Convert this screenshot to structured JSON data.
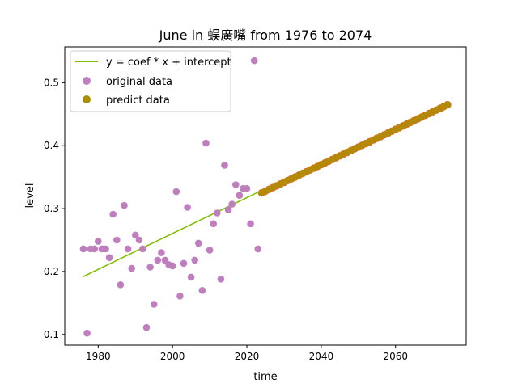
{
  "chart_data": {
    "type": "scatter",
    "title": "June in 蜈廣嘴 from 1976 to 2074",
    "xlabel": "time",
    "ylabel": "level",
    "xlim": [
      1971,
      2079
    ],
    "ylim": [
      0.083,
      0.557
    ],
    "xticks": [
      1980,
      2000,
      2020,
      2040,
      2060
    ],
    "yticks": [
      0.1,
      0.2,
      0.3,
      0.4,
      0.5
    ],
    "grid": false,
    "legend_position": "top-left",
    "legend": [
      {
        "label": "y = coef * x + intercept",
        "kind": "line",
        "color": "#7fbf00"
      },
      {
        "label": "original data",
        "kind": "marker",
        "color": "#bf7fbf"
      },
      {
        "label": "predict data",
        "kind": "marker",
        "color": "#ab8f00"
      }
    ],
    "series": [
      {
        "name": "y = coef * x + intercept",
        "kind": "line",
        "color": "#7fbf00",
        "x": [
          1976,
          2023
        ],
        "y": [
          0.192,
          0.326
        ]
      },
      {
        "name": "original data",
        "kind": "scatter",
        "color": "#bf7fbf",
        "x": [
          1976,
          1977,
          1978,
          1979,
          1980,
          1981,
          1982,
          1983,
          1984,
          1985,
          1986,
          1987,
          1988,
          1989,
          1990,
          1991,
          1992,
          1993,
          1994,
          1995,
          1996,
          1997,
          1998,
          1999,
          2000,
          2001,
          2002,
          2003,
          2004,
          2005,
          2006,
          2007,
          2008,
          2009,
          2010,
          2011,
          2012,
          2013,
          2014,
          2015,
          2016,
          2017,
          2018,
          2019,
          2020,
          2021,
          2022,
          2023
        ],
        "y": [
          0.236,
          0.102,
          0.236,
          0.236,
          0.248,
          0.236,
          0.236,
          0.222,
          0.291,
          0.25,
          0.179,
          0.305,
          0.236,
          0.205,
          0.258,
          0.25,
          0.236,
          0.111,
          0.207,
          0.148,
          0.218,
          0.23,
          0.218,
          0.211,
          0.209,
          0.327,
          0.161,
          0.213,
          0.302,
          0.191,
          0.218,
          0.245,
          0.17,
          0.404,
          0.234,
          0.276,
          0.293,
          0.188,
          0.369,
          0.298,
          0.307,
          0.338,
          0.321,
          0.332,
          0.332,
          0.276,
          0.535,
          0.236
        ]
      },
      {
        "name": "predict data",
        "kind": "scatter",
        "color": "#ab8f00",
        "edge_color": "#d9702a",
        "x": [
          2024,
          2025,
          2026,
          2027,
          2028,
          2029,
          2030,
          2031,
          2032,
          2033,
          2034,
          2035,
          2036,
          2037,
          2038,
          2039,
          2040,
          2041,
          2042,
          2043,
          2044,
          2045,
          2046,
          2047,
          2048,
          2049,
          2050,
          2051,
          2052,
          2053,
          2054,
          2055,
          2056,
          2057,
          2058,
          2059,
          2060,
          2061,
          2062,
          2063,
          2064,
          2065,
          2066,
          2067,
          2068,
          2069,
          2070,
          2071,
          2072,
          2073,
          2074
        ],
        "y": [
          0.325,
          0.3278,
          0.3306,
          0.3334,
          0.3362,
          0.339,
          0.3418,
          0.3446,
          0.3474,
          0.3502,
          0.353,
          0.3558,
          0.3586,
          0.3614,
          0.3642,
          0.367,
          0.3698,
          0.3726,
          0.3754,
          0.3782,
          0.381,
          0.3838,
          0.3866,
          0.3894,
          0.3922,
          0.395,
          0.3978,
          0.4006,
          0.4034,
          0.4062,
          0.409,
          0.4118,
          0.4146,
          0.4174,
          0.4202,
          0.423,
          0.4258,
          0.4286,
          0.4314,
          0.4342,
          0.437,
          0.4398,
          0.4426,
          0.4454,
          0.4482,
          0.451,
          0.4538,
          0.4566,
          0.4594,
          0.4622,
          0.465
        ]
      }
    ]
  }
}
